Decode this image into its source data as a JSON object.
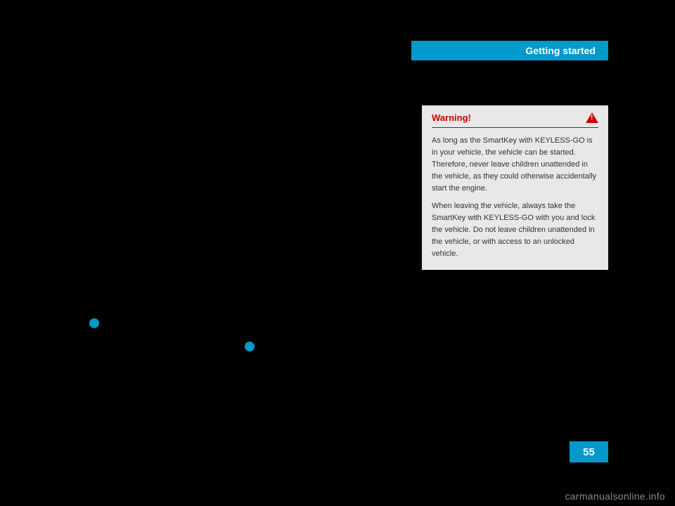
{
  "header": {
    "title": "Getting started"
  },
  "warning": {
    "title": "Warning!",
    "paragraph1": "As long as the SmartKey with KEYLESS-GO is in your vehicle, the vehicle can be started. Therefore, never leave children unattended in the vehicle, as they could otherwise accidentally start the engine.",
    "paragraph2": "When leaving the vehicle, always take the SmartKey with KEYLESS-GO with you and lock the vehicle. Do not leave children unattended in the vehicle, or with access to an unlocked vehicle."
  },
  "page_number": "55",
  "watermark": "carmanualsonline.info",
  "colors": {
    "accent": "#0099cc",
    "warning_red": "#cc0000",
    "warning_bg": "#e8e8e8",
    "page_bg": "#000000"
  }
}
